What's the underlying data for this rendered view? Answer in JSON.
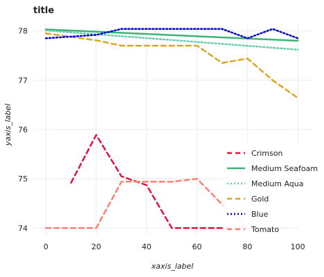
{
  "chart_data": {
    "type": "line",
    "title": "title",
    "xlabel": "xaxis_label",
    "ylabel": "yaxis_label",
    "x": [
      0,
      5,
      10,
      15,
      20,
      25,
      30,
      35,
      40,
      45,
      50,
      55,
      60,
      65,
      70,
      75,
      80,
      85,
      90,
      95,
      100
    ],
    "xlim": [
      -5,
      106
    ],
    "ylim": [
      73.85,
      78.15
    ],
    "xticks": [
      0,
      20,
      40,
      60,
      80,
      100
    ],
    "yticks": [
      74,
      75,
      76,
      77,
      78
    ],
    "grid": true,
    "legend_position": "right",
    "series": [
      {
        "name": "Crimson",
        "color": "#dc143c",
        "dash": "7,5",
        "values": [
          null,
          null,
          74.92,
          null,
          75.89,
          null,
          75.05,
          null,
          74.87,
          null,
          74.0,
          null,
          74.0,
          null,
          74.0,
          null,
          74.0,
          null,
          74.0,
          null,
          74.0
        ]
      },
      {
        "name": "Medium Seafoam",
        "color": "#3cb371",
        "dash": "",
        "values": [
          78.03,
          null,
          null,
          null,
          null,
          null,
          null,
          null,
          null,
          null,
          null,
          null,
          null,
          null,
          null,
          null,
          null,
          null,
          null,
          null,
          77.8
        ]
      },
      {
        "name": "Medium Aqua",
        "color": "#66cdaa",
        "dash": "2,3",
        "values": [
          78.01,
          null,
          null,
          null,
          null,
          null,
          null,
          null,
          null,
          null,
          null,
          null,
          null,
          null,
          null,
          null,
          null,
          null,
          null,
          null,
          77.62
        ]
      },
      {
        "name": "Gold",
        "color": "#daa520",
        "dash": "7,5",
        "values": [
          77.95,
          null,
          null,
          null,
          77.81,
          null,
          77.7,
          null,
          77.7,
          null,
          77.7,
          null,
          77.7,
          null,
          77.35,
          null,
          77.44,
          null,
          77.0,
          null,
          76.64
        ]
      },
      {
        "name": "Blue",
        "color": "#0000cd",
        "dash": "2,3",
        "values": [
          77.85,
          null,
          null,
          null,
          77.92,
          null,
          78.04,
          null,
          78.04,
          null,
          78.04,
          null,
          78.04,
          null,
          78.04,
          null,
          77.85,
          null,
          78.04,
          null,
          77.85
        ]
      },
      {
        "name": "Tomato",
        "color": "#fa8072",
        "dash": "7,5",
        "values": [
          74.0,
          null,
          null,
          null,
          74.0,
          null,
          74.94,
          null,
          74.94,
          null,
          74.94,
          null,
          75.0,
          null,
          74.48,
          null,
          74.0,
          null,
          74.0,
          null,
          74.0
        ]
      }
    ]
  }
}
